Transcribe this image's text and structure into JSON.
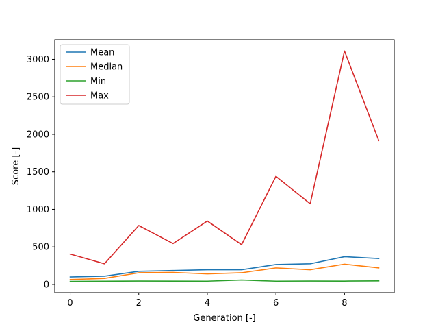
{
  "chart_data": {
    "type": "line",
    "title": "",
    "xlabel": "Generation [-]",
    "ylabel": "Score [-]",
    "x": [
      0,
      1,
      2,
      3,
      4,
      5,
      6,
      7,
      8,
      9
    ],
    "xlim": [
      -0.45,
      9.45
    ],
    "ylim": [
      -110,
      3260
    ],
    "xticks": [
      0,
      2,
      4,
      6,
      8
    ],
    "yticks": [
      0,
      500,
      1000,
      1500,
      2000,
      2500,
      3000
    ],
    "xtick_labels": [
      "0",
      "2",
      "4",
      "6",
      "8"
    ],
    "ytick_labels": [
      "0",
      "500",
      "1000",
      "1500",
      "2000",
      "2500",
      "3000"
    ],
    "grid": false,
    "legend": "upper-left",
    "series": [
      {
        "name": "Mean",
        "color": "#1f77b4",
        "values": [
          100,
          110,
          175,
          185,
          195,
          195,
          265,
          275,
          370,
          345
        ]
      },
      {
        "name": "Median",
        "color": "#ff7f0e",
        "values": [
          65,
          80,
          155,
          160,
          140,
          155,
          220,
          195,
          270,
          220
        ]
      },
      {
        "name": "Min",
        "color": "#2ca02c",
        "values": [
          40,
          42,
          45,
          44,
          43,
          58,
          43,
          45,
          44,
          47
        ]
      },
      {
        "name": "Max",
        "color": "#d62728",
        "values": [
          405,
          275,
          785,
          545,
          845,
          530,
          1440,
          1075,
          3110,
          1915
        ]
      }
    ]
  }
}
